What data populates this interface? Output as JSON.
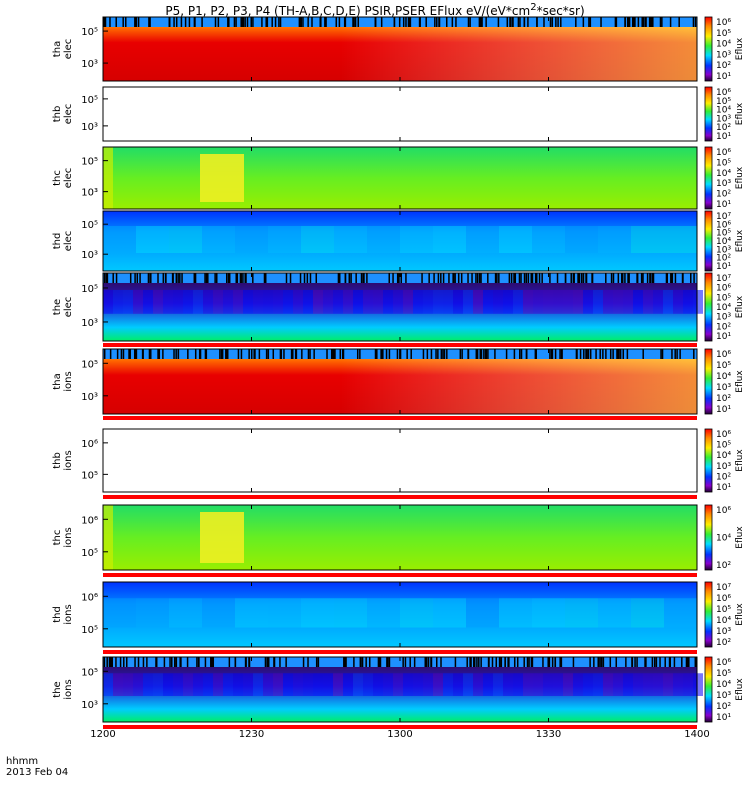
{
  "title_html": "P5, P1, P2, P3, P4 (TH-A,B,C,D,E) PSIR,PSER EFlux eV/(eV*cm<sup>2</sup>*sec*sr)",
  "time_label": "hhmm",
  "date_label": "2013 Feb 04",
  "colorbar_label": "Eflux",
  "chart_data": {
    "type": "heatmap",
    "x_ticks": [
      "1200",
      "1230",
      "1300",
      "1330",
      "1400"
    ],
    "panels": [
      {
        "id": "tha-elec",
        "ylabel": [
          "tha",
          "elec"
        ],
        "yticks": [
          "10^5",
          "10^3"
        ],
        "cbar": [
          "10^6",
          "10^5",
          "10^4",
          "10^3",
          "10^2",
          "10^1"
        ],
        "style": "hot",
        "fill": 1,
        "cadence_bar": true
      },
      {
        "id": "thb-elec",
        "ylabel": [
          "thb",
          "elec"
        ],
        "yticks": [
          "10^5",
          "10^3"
        ],
        "cbar": [
          "10^6",
          "10^5",
          "10^4",
          "10^3",
          "10^2",
          "10^1"
        ],
        "style": "empty",
        "fill": 0,
        "cadence_bar": false
      },
      {
        "id": "thc-elec",
        "ylabel": [
          "thc",
          "elec"
        ],
        "yticks": [
          "10^5",
          "10^3"
        ],
        "cbar": [
          "10^6",
          "10^5",
          "10^4",
          "10^3",
          "10^2",
          "10^1"
        ],
        "style": "green",
        "fill": 1,
        "cadence_bar": false
      },
      {
        "id": "thd-elec",
        "ylabel": [
          "thd",
          "elec"
        ],
        "yticks": [
          "10^5",
          "10^3"
        ],
        "cbar": [
          "10^7",
          "10^6",
          "10^5",
          "10^4",
          "10^3",
          "10^2",
          "10^1"
        ],
        "style": "blue",
        "fill": 1,
        "cadence_bar": false
      },
      {
        "id": "the-elec",
        "ylabel": [
          "the",
          "elec"
        ],
        "yticks": [
          "10^5",
          "10^3"
        ],
        "cbar": [
          "10^7",
          "10^6",
          "10^5",
          "10^4",
          "10^3",
          "10^2",
          "10^1"
        ],
        "style": "dark",
        "fill": 1,
        "cadence_bar": true
      },
      {
        "id": "tha-ions",
        "ylabel": [
          "tha",
          "ions"
        ],
        "yticks": [
          "10^5",
          "10^3"
        ],
        "cbar": [
          "10^6",
          "10^5",
          "10^4",
          "10^3",
          "10^2",
          "10^1"
        ],
        "style": "hot",
        "fill": 1,
        "cadence_bar": true
      },
      {
        "id": "thb-ions",
        "ylabel": [
          "thb",
          "ions"
        ],
        "yticks": [
          "10^6",
          "10^5"
        ],
        "cbar": [
          "10^6",
          "10^5",
          "10^4",
          "10^3",
          "10^2",
          "10^1"
        ],
        "style": "empty",
        "fill": 0,
        "cadence_bar": false
      },
      {
        "id": "thc-ions",
        "ylabel": [
          "thc",
          "ions"
        ],
        "yticks": [
          "10^6",
          "10^5"
        ],
        "cbar": [
          "10^6",
          "10^4",
          "10^2"
        ],
        "style": "green",
        "fill": 1,
        "cadence_bar": false
      },
      {
        "id": "thd-ions",
        "ylabel": [
          "thd",
          "ions"
        ],
        "yticks": [
          "10^6",
          "10^5"
        ],
        "cbar": [
          "10^7",
          "10^6",
          "10^5",
          "10^4",
          "10^3",
          "10^2"
        ],
        "style": "blue",
        "fill": 1,
        "cadence_bar": false
      },
      {
        "id": "the-ions",
        "ylabel": [
          "the",
          "ions"
        ],
        "yticks": [
          "10^5",
          "10^3"
        ],
        "cbar": [
          "10^6",
          "10^5",
          "10^4",
          "10^3",
          "10^2",
          "10^1"
        ],
        "style": "dark",
        "fill": 1,
        "cadence_bar": true
      }
    ]
  }
}
